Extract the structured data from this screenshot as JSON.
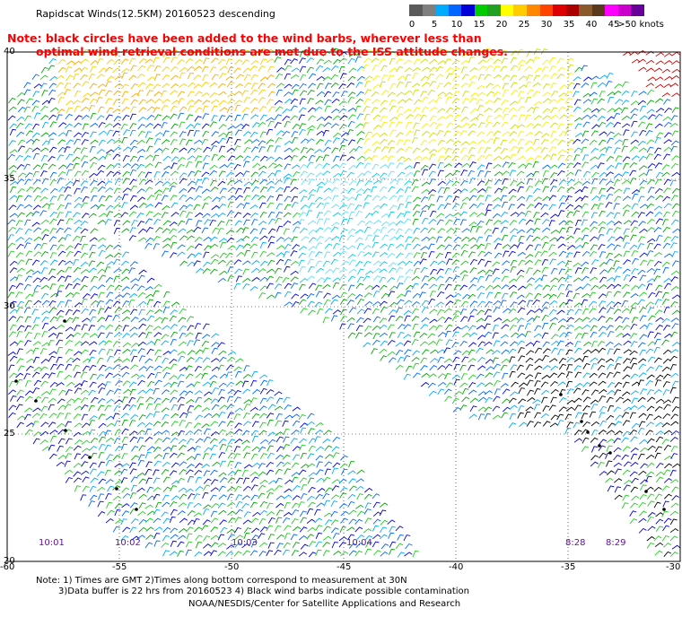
{
  "title": "Rapidscat Winds(12.5KM) 20160523 descending",
  "note_line1": "Note: black circles have been added to the wind barbs, wherever less than",
  "note_line2": "optimal wind retrieval conditions are met due to the ISS attitude changes.",
  "legend": {
    "labels": [
      "0",
      "5",
      "10",
      "15",
      "20",
      "25",
      "30",
      "35",
      "40",
      "45",
      ">50 knots"
    ],
    "colors": [
      "#5a5a5a",
      "#7f7f7f",
      "#00aaff",
      "#0066ff",
      "#0000d8",
      "#00cc00",
      "#22a022",
      "#ffff00",
      "#ffcc00",
      "#ff8800",
      "#ff4400",
      "#dd0000",
      "#aa0000",
      "#8b5a2b",
      "#5a3a1a",
      "#ff00ff",
      "#cc00cc",
      "#660099"
    ]
  },
  "axes": {
    "y_labels": [
      "40",
      "35",
      "30",
      "25",
      "20"
    ],
    "x_labels": [
      "-60",
      "-55",
      "-50",
      "-45",
      "-40",
      "-35",
      "-30"
    ]
  },
  "time_labels": [
    "10:01",
    "10:02",
    "10:03",
    "10:04",
    "8:28",
    "8:29"
  ],
  "footer": {
    "line1": "Note: 1) Times are GMT 2)Times along bottom correspond to measurement at 30N",
    "line2": "3)Data buffer is 22 hrs from 20160523 4) Black wind barbs indicate possible contamination",
    "line3": "NOAA/NESDIS/Center for Satellite Applications and Research"
  }
}
